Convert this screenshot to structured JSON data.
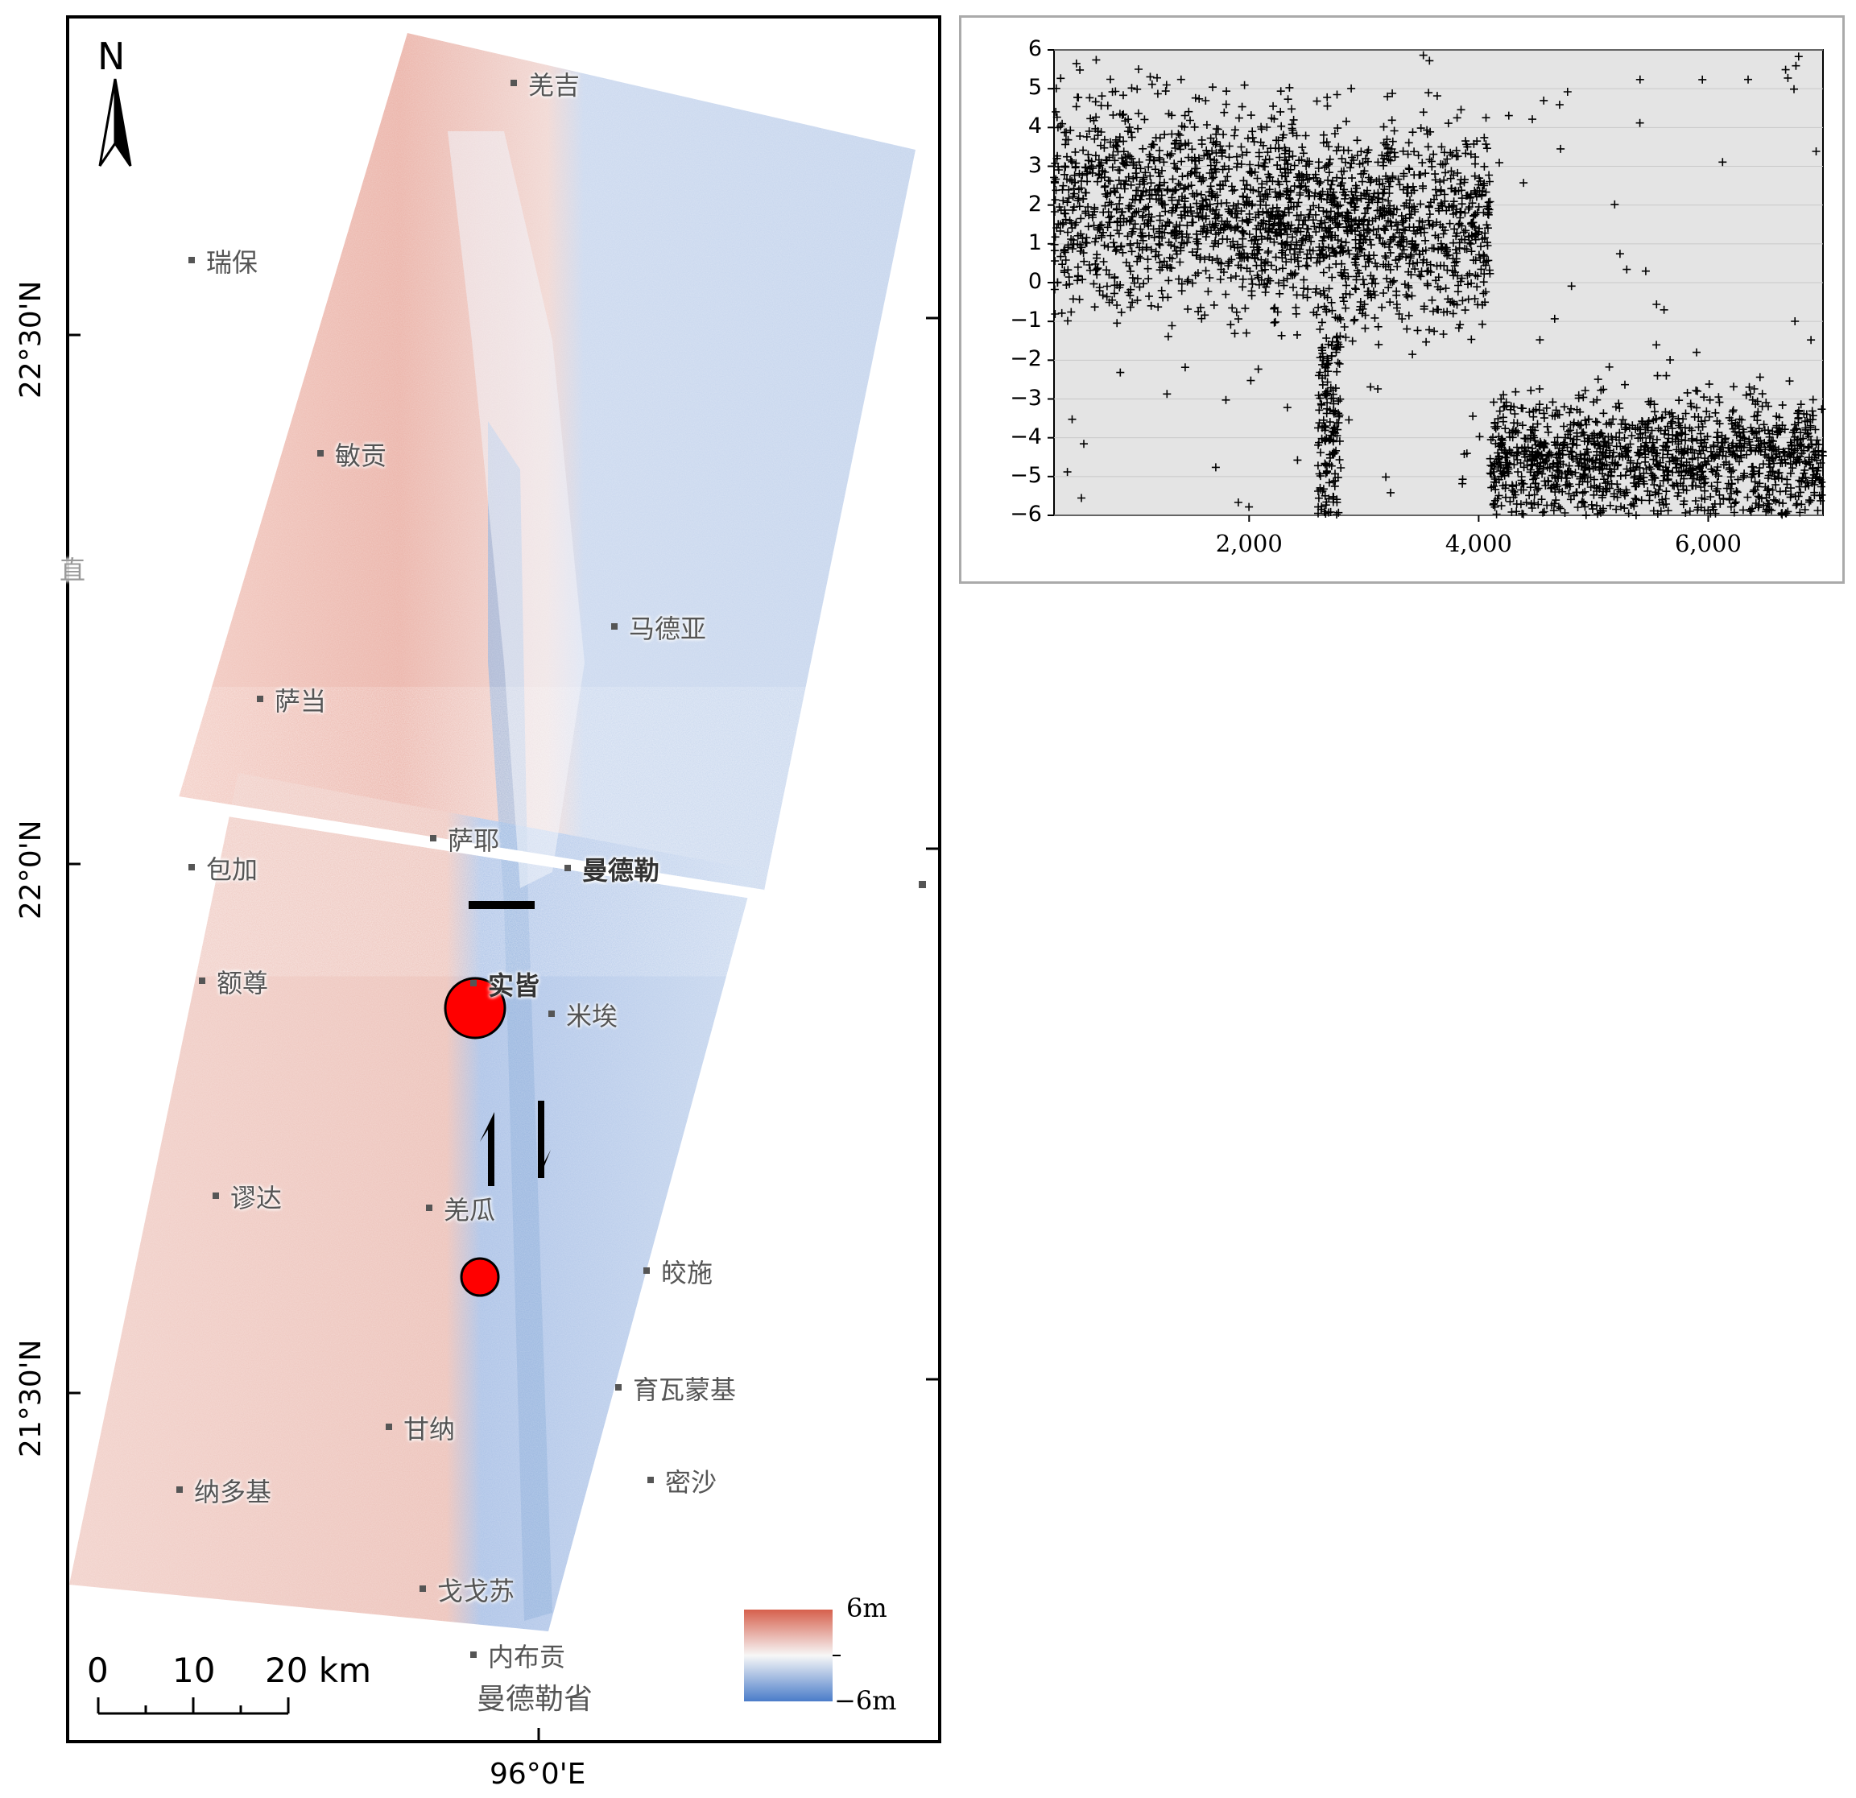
{
  "map": {
    "north_label": "N",
    "lat_labels": [
      "22°30'N",
      "22°0'N",
      "21°30'N"
    ],
    "lon_label": "96°0'E",
    "scale": {
      "labels": [
        "0",
        "10",
        "20 km"
      ]
    },
    "legend": {
      "max_label": "6m",
      "min_label": "−6m",
      "max_color": "#d6604d",
      "min_color": "#4a7cc9"
    },
    "region_label": "曼德勒省",
    "places": [
      {
        "name": "羌吉",
        "bold": false
      },
      {
        "name": "瑞保",
        "bold": false
      },
      {
        "name": "敏贡",
        "bold": false
      },
      {
        "name": "马德亚",
        "bold": false
      },
      {
        "name": "萨当",
        "bold": false
      },
      {
        "name": "萨耶",
        "bold": false
      },
      {
        "name": "包加",
        "bold": false
      },
      {
        "name": "曼德勒",
        "bold": true
      },
      {
        "name": "额尊",
        "bold": false
      },
      {
        "name": "实皆",
        "bold": true
      },
      {
        "name": "米埃",
        "bold": false
      },
      {
        "name": "谬达",
        "bold": false
      },
      {
        "name": "羌瓜",
        "bold": false
      },
      {
        "name": "皎施",
        "bold": false
      },
      {
        "name": "育瓦蒙基",
        "bold": false
      },
      {
        "name": "甘纳",
        "bold": false
      },
      {
        "name": "密沙",
        "bold": false
      },
      {
        "name": "纳多基",
        "bold": false
      },
      {
        "name": "戈戈苏",
        "bold": false
      },
      {
        "name": "内布贡",
        "bold": false
      }
    ],
    "markers": [
      {
        "name": "large-epicenter",
        "color": "#ff0000"
      },
      {
        "name": "small-epicenter",
        "color": "#ff0000"
      }
    ],
    "edge_glyph": "直"
  },
  "chart_data": {
    "type": "scatter",
    "marker": "+",
    "x_ticks": [
      "2,000",
      "4,000",
      "6,000"
    ],
    "y_ticks": [
      "6",
      "5",
      "4",
      "3",
      "2",
      "1",
      "0",
      "−1",
      "−2",
      "−3",
      "−4",
      "−5",
      "−6"
    ],
    "xlim": [
      300,
      7000
    ],
    "ylim": [
      -6,
      6
    ],
    "clusters": [
      {
        "x_range": [
          300,
          2400
        ],
        "y_center": 2.0,
        "spread": 2.2
      },
      {
        "x_range": [
          2400,
          4100
        ],
        "y_center": 1.5,
        "spread": 2.0
      },
      {
        "x_range": [
          2600,
          2800
        ],
        "y_center": -3.5,
        "spread": 2.5
      },
      {
        "x_range": [
          4100,
          7000
        ],
        "y_center": -4.5,
        "spread": 1.3
      }
    ],
    "background": "#e4e4e4"
  }
}
